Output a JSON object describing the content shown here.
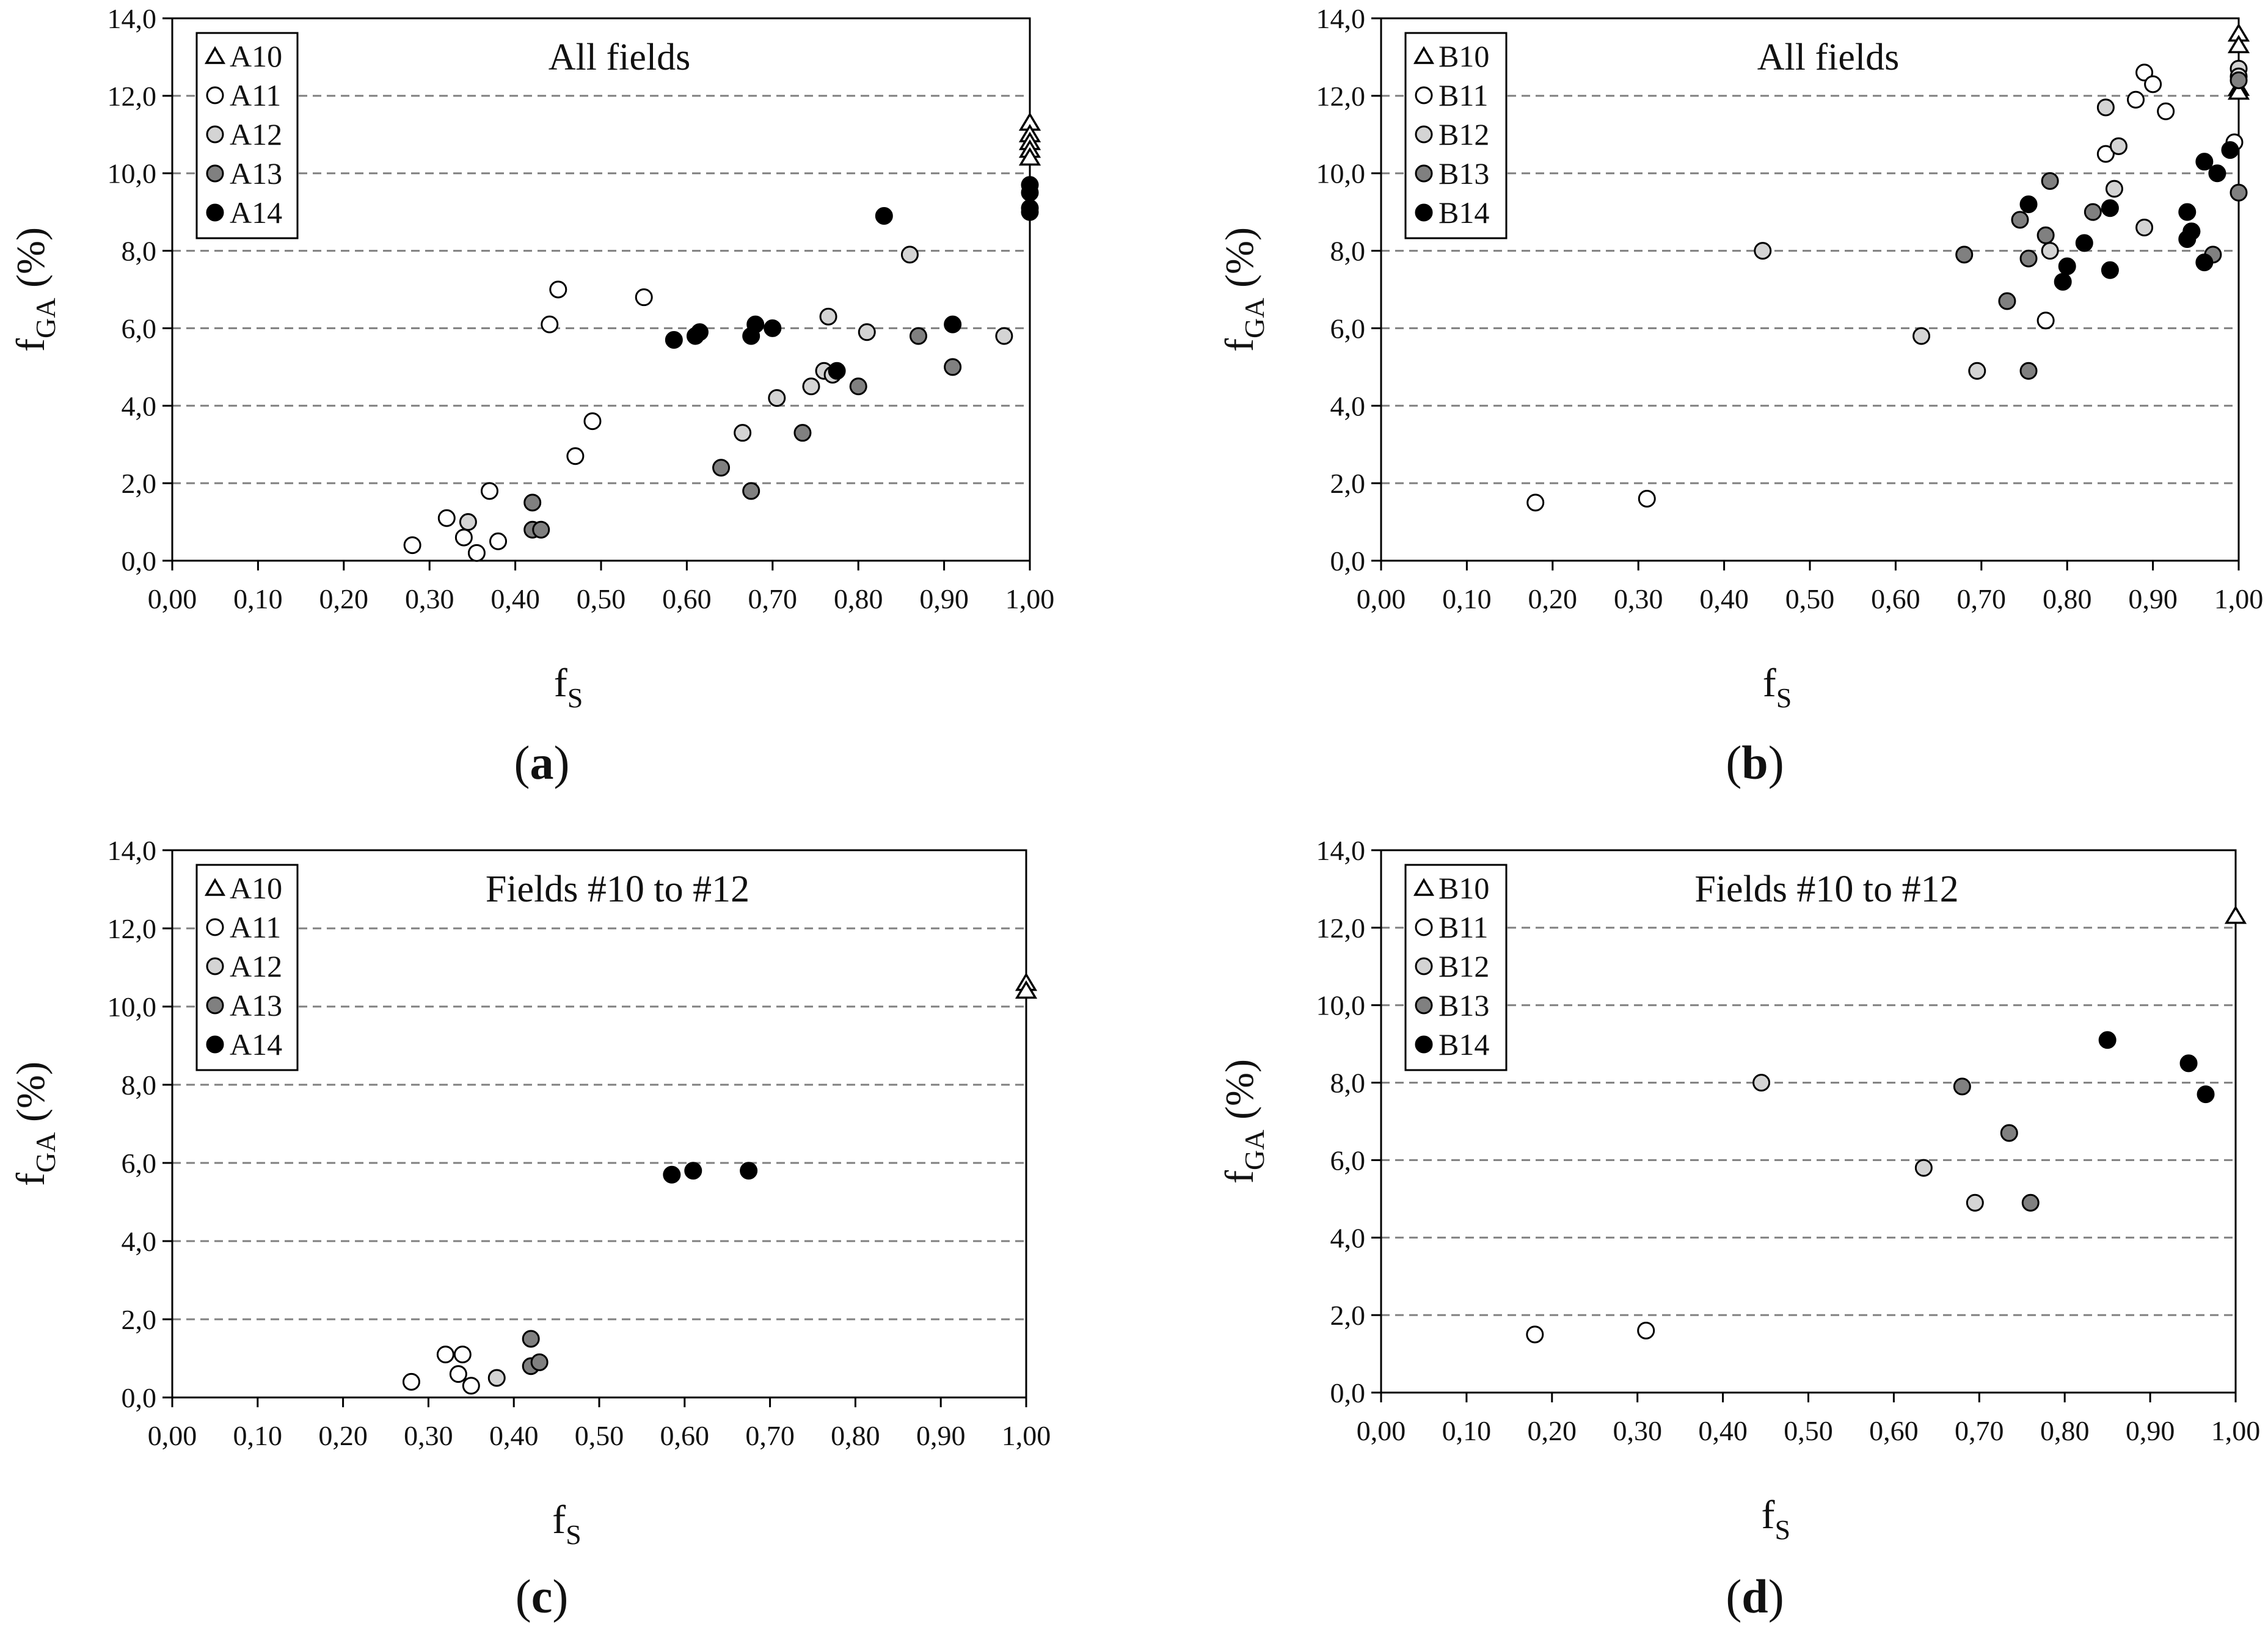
{
  "figure": {
    "panels": [
      {
        "id": "a",
        "label": "(a)",
        "label_letter": "a"
      },
      {
        "id": "b",
        "label": "(b)",
        "label_letter": "b"
      },
      {
        "id": "c",
        "label": "(c)",
        "label_letter": "c"
      },
      {
        "id": "d",
        "label": "(d)",
        "label_letter": "d"
      }
    ]
  },
  "chart_data": [
    {
      "type": "scatter",
      "id": "a",
      "title": "All fields",
      "xlabel": "f",
      "xlabel_sub": "S",
      "ylabel": "f",
      "ylabel_sub": "GA",
      "ylabel_unit": "(%)",
      "xlim": [
        0,
        1
      ],
      "ylim": [
        0,
        14
      ],
      "xticks": [
        "0,00",
        "0,10",
        "0,20",
        "0,30",
        "0,40",
        "0,50",
        "0,60",
        "0,70",
        "0,80",
        "0,90",
        "1,00"
      ],
      "yticks": [
        "0,0",
        "2,0",
        "4,0",
        "6,0",
        "8,0",
        "10,0",
        "12,0",
        "14,0"
      ],
      "grid": "horizontal dashed",
      "legend_position": "top-left",
      "series": [
        {
          "name": "A10",
          "marker": "triangle",
          "fill": "#ffffff",
          "points": [
            [
              1.0,
              11.3
            ],
            [
              1.0,
              11.0
            ],
            [
              1.0,
              10.8
            ],
            [
              1.0,
              10.6
            ],
            [
              1.0,
              10.4
            ]
          ]
        },
        {
          "name": "A11",
          "marker": "circle",
          "fill": "#ffffff",
          "points": [
            [
              0.28,
              0.4
            ],
            [
              0.32,
              1.1
            ],
            [
              0.34,
              0.6
            ],
            [
              0.355,
              0.2
            ],
            [
              0.37,
              1.8
            ],
            [
              0.38,
              0.5
            ],
            [
              0.44,
              6.1
            ],
            [
              0.45,
              7.0
            ],
            [
              0.47,
              2.7
            ],
            [
              0.49,
              3.6
            ],
            [
              0.55,
              6.8
            ]
          ]
        },
        {
          "name": "A12",
          "marker": "circle",
          "fill": "#d4d4d4",
          "points": [
            [
              0.345,
              1.0
            ],
            [
              0.665,
              3.3
            ],
            [
              0.705,
              4.2
            ],
            [
              0.745,
              4.5
            ],
            [
              0.76,
              4.9
            ],
            [
              0.765,
              6.3
            ],
            [
              0.77,
              4.8
            ],
            [
              0.81,
              5.9
            ],
            [
              0.86,
              7.9
            ],
            [
              0.97,
              5.8
            ]
          ]
        },
        {
          "name": "A13",
          "marker": "circle",
          "fill": "#808080",
          "points": [
            [
              0.42,
              1.5
            ],
            [
              0.42,
              0.8
            ],
            [
              0.43,
              0.8
            ],
            [
              0.64,
              2.4
            ],
            [
              0.675,
              1.8
            ],
            [
              0.735,
              3.3
            ],
            [
              0.8,
              4.5
            ],
            [
              0.87,
              5.8
            ],
            [
              0.91,
              5.0
            ]
          ]
        },
        {
          "name": "A14",
          "marker": "circle",
          "fill": "#000000",
          "points": [
            [
              0.585,
              5.7
            ],
            [
              0.61,
              5.8
            ],
            [
              0.615,
              5.9
            ],
            [
              0.675,
              5.8
            ],
            [
              0.68,
              6.1
            ],
            [
              0.7,
              6.0
            ],
            [
              0.775,
              4.9
            ],
            [
              0.83,
              8.9
            ],
            [
              0.91,
              6.1
            ],
            [
              1.0,
              9.7
            ],
            [
              1.0,
              9.5
            ],
            [
              1.0,
              9.1
            ],
            [
              1.0,
              9.0
            ]
          ]
        }
      ]
    },
    {
      "type": "scatter",
      "id": "b",
      "title": "All fields",
      "xlabel": "f",
      "xlabel_sub": "S",
      "ylabel": "f",
      "ylabel_sub": "GA",
      "ylabel_unit": "(%)",
      "xlim": [
        0,
        1
      ],
      "ylim": [
        0,
        14
      ],
      "xticks": [
        "0,00",
        "0,10",
        "0,20",
        "0,30",
        "0,40",
        "0,50",
        "0,60",
        "0,70",
        "0,80",
        "0,90",
        "1,00"
      ],
      "yticks": [
        "0,0",
        "2,0",
        "4,0",
        "6,0",
        "8,0",
        "10,0",
        "12,0",
        "14,0"
      ],
      "grid": "horizontal dashed",
      "legend_position": "top-left",
      "series": [
        {
          "name": "B10",
          "marker": "triangle",
          "fill": "#ffffff",
          "points": [
            [
              1.0,
              13.6
            ],
            [
              1.0,
              13.3
            ],
            [
              1.0,
              12.2
            ],
            [
              1.0,
              12.1
            ]
          ]
        },
        {
          "name": "B11",
          "marker": "circle",
          "fill": "#ffffff",
          "points": [
            [
              0.18,
              1.5
            ],
            [
              0.31,
              1.6
            ],
            [
              0.775,
              6.2
            ],
            [
              0.845,
              10.5
            ],
            [
              0.88,
              11.9
            ],
            [
              0.89,
              12.6
            ],
            [
              0.9,
              12.3
            ],
            [
              0.915,
              11.6
            ],
            [
              0.995,
              10.8
            ]
          ]
        },
        {
          "name": "B12",
          "marker": "circle",
          "fill": "#d4d4d4",
          "points": [
            [
              0.445,
              8.0
            ],
            [
              0.63,
              5.8
            ],
            [
              0.695,
              4.9
            ],
            [
              0.78,
              8.0
            ],
            [
              0.845,
              11.7
            ],
            [
              0.855,
              9.6
            ],
            [
              0.86,
              10.7
            ],
            [
              0.89,
              8.6
            ],
            [
              1.0,
              12.7
            ],
            [
              1.0,
              12.5
            ]
          ]
        },
        {
          "name": "B13",
          "marker": "circle",
          "fill": "#808080",
          "points": [
            [
              0.68,
              7.9
            ],
            [
              0.73,
              6.7
            ],
            [
              0.745,
              8.8
            ],
            [
              0.755,
              7.8
            ],
            [
              0.755,
              4.9
            ],
            [
              0.775,
              8.4
            ],
            [
              0.78,
              9.8
            ],
            [
              0.83,
              9.0
            ],
            [
              0.945,
              8.5
            ],
            [
              0.97,
              7.9
            ],
            [
              1.0,
              12.4
            ],
            [
              1.0,
              9.5
            ]
          ]
        },
        {
          "name": "B14",
          "marker": "circle",
          "fill": "#000000",
          "points": [
            [
              0.755,
              9.2
            ],
            [
              0.795,
              7.2
            ],
            [
              0.8,
              7.6
            ],
            [
              0.82,
              8.2
            ],
            [
              0.85,
              9.1
            ],
            [
              0.85,
              7.5
            ],
            [
              0.94,
              8.3
            ],
            [
              0.94,
              9.0
            ],
            [
              0.945,
              8.5
            ],
            [
              0.96,
              10.3
            ],
            [
              0.96,
              7.7
            ],
            [
              0.975,
              10.0
            ],
            [
              0.99,
              10.6
            ]
          ]
        }
      ]
    },
    {
      "type": "scatter",
      "id": "c",
      "title": "Fields #10 to #12",
      "xlabel": "f",
      "xlabel_sub": "S",
      "ylabel": "f",
      "ylabel_sub": "GA",
      "ylabel_unit": "(%)",
      "xlim": [
        0,
        1
      ],
      "ylim": [
        0,
        14
      ],
      "xticks": [
        "0,00",
        "0,10",
        "0,20",
        "0,30",
        "0,40",
        "0,50",
        "0,60",
        "0,70",
        "0,80",
        "0,90",
        "1,00"
      ],
      "yticks": [
        "0,0",
        "2,0",
        "4,0",
        "6,0",
        "8,0",
        "10,0",
        "12,0",
        "14,0"
      ],
      "grid": "horizontal dashed",
      "legend_position": "top-left",
      "series": [
        {
          "name": "A10",
          "marker": "triangle",
          "fill": "#ffffff",
          "points": [
            [
              1.0,
              10.6
            ],
            [
              1.0,
              10.4
            ]
          ]
        },
        {
          "name": "A11",
          "marker": "circle",
          "fill": "#ffffff",
          "points": [
            [
              0.28,
              0.4
            ],
            [
              0.32,
              1.1
            ],
            [
              0.335,
              0.6
            ],
            [
              0.34,
              1.1
            ],
            [
              0.35,
              0.3
            ]
          ]
        },
        {
          "name": "A12",
          "marker": "circle",
          "fill": "#d4d4d4",
          "points": [
            [
              0.38,
              0.5
            ]
          ]
        },
        {
          "name": "A13",
          "marker": "circle",
          "fill": "#808080",
          "points": [
            [
              0.42,
              1.5
            ],
            [
              0.42,
              0.8
            ],
            [
              0.43,
              0.9
            ]
          ]
        },
        {
          "name": "A14",
          "marker": "circle",
          "fill": "#000000",
          "points": [
            [
              0.585,
              5.7
            ],
            [
              0.61,
              5.8
            ],
            [
              0.675,
              5.8
            ]
          ]
        }
      ]
    },
    {
      "type": "scatter",
      "id": "d",
      "title": "Fields #10 to #12",
      "xlabel": "f",
      "xlabel_sub": "S",
      "ylabel": "f",
      "ylabel_sub": "GA",
      "ylabel_unit": "(%)",
      "xlim": [
        0,
        1
      ],
      "ylim": [
        0,
        14
      ],
      "xticks": [
        "0,00",
        "0,10",
        "0,20",
        "0,30",
        "0,40",
        "0,50",
        "0,60",
        "0,70",
        "0,80",
        "0,90",
        "1,00"
      ],
      "yticks": [
        "0,0",
        "2,0",
        "4,0",
        "6,0",
        "8,0",
        "10,0",
        "12,0",
        "14,0"
      ],
      "grid": "horizontal dashed",
      "legend_position": "top-left",
      "series": [
        {
          "name": "B10",
          "marker": "triangle",
          "fill": "#ffffff",
          "points": [
            [
              1.0,
              12.3
            ]
          ]
        },
        {
          "name": "B11",
          "marker": "circle",
          "fill": "#ffffff",
          "points": [
            [
              0.18,
              1.5
            ],
            [
              0.31,
              1.6
            ]
          ]
        },
        {
          "name": "B12",
          "marker": "circle",
          "fill": "#d4d4d4",
          "points": [
            [
              0.445,
              8.0
            ],
            [
              0.635,
              5.8
            ],
            [
              0.695,
              4.9
            ]
          ]
        },
        {
          "name": "B13",
          "marker": "circle",
          "fill": "#808080",
          "points": [
            [
              0.68,
              7.9
            ],
            [
              0.735,
              6.7
            ],
            [
              0.76,
              4.9
            ]
          ]
        },
        {
          "name": "B14",
          "marker": "circle",
          "fill": "#000000",
          "points": [
            [
              0.85,
              9.1
            ],
            [
              0.945,
              8.5
            ],
            [
              0.965,
              7.7
            ]
          ]
        }
      ]
    }
  ]
}
